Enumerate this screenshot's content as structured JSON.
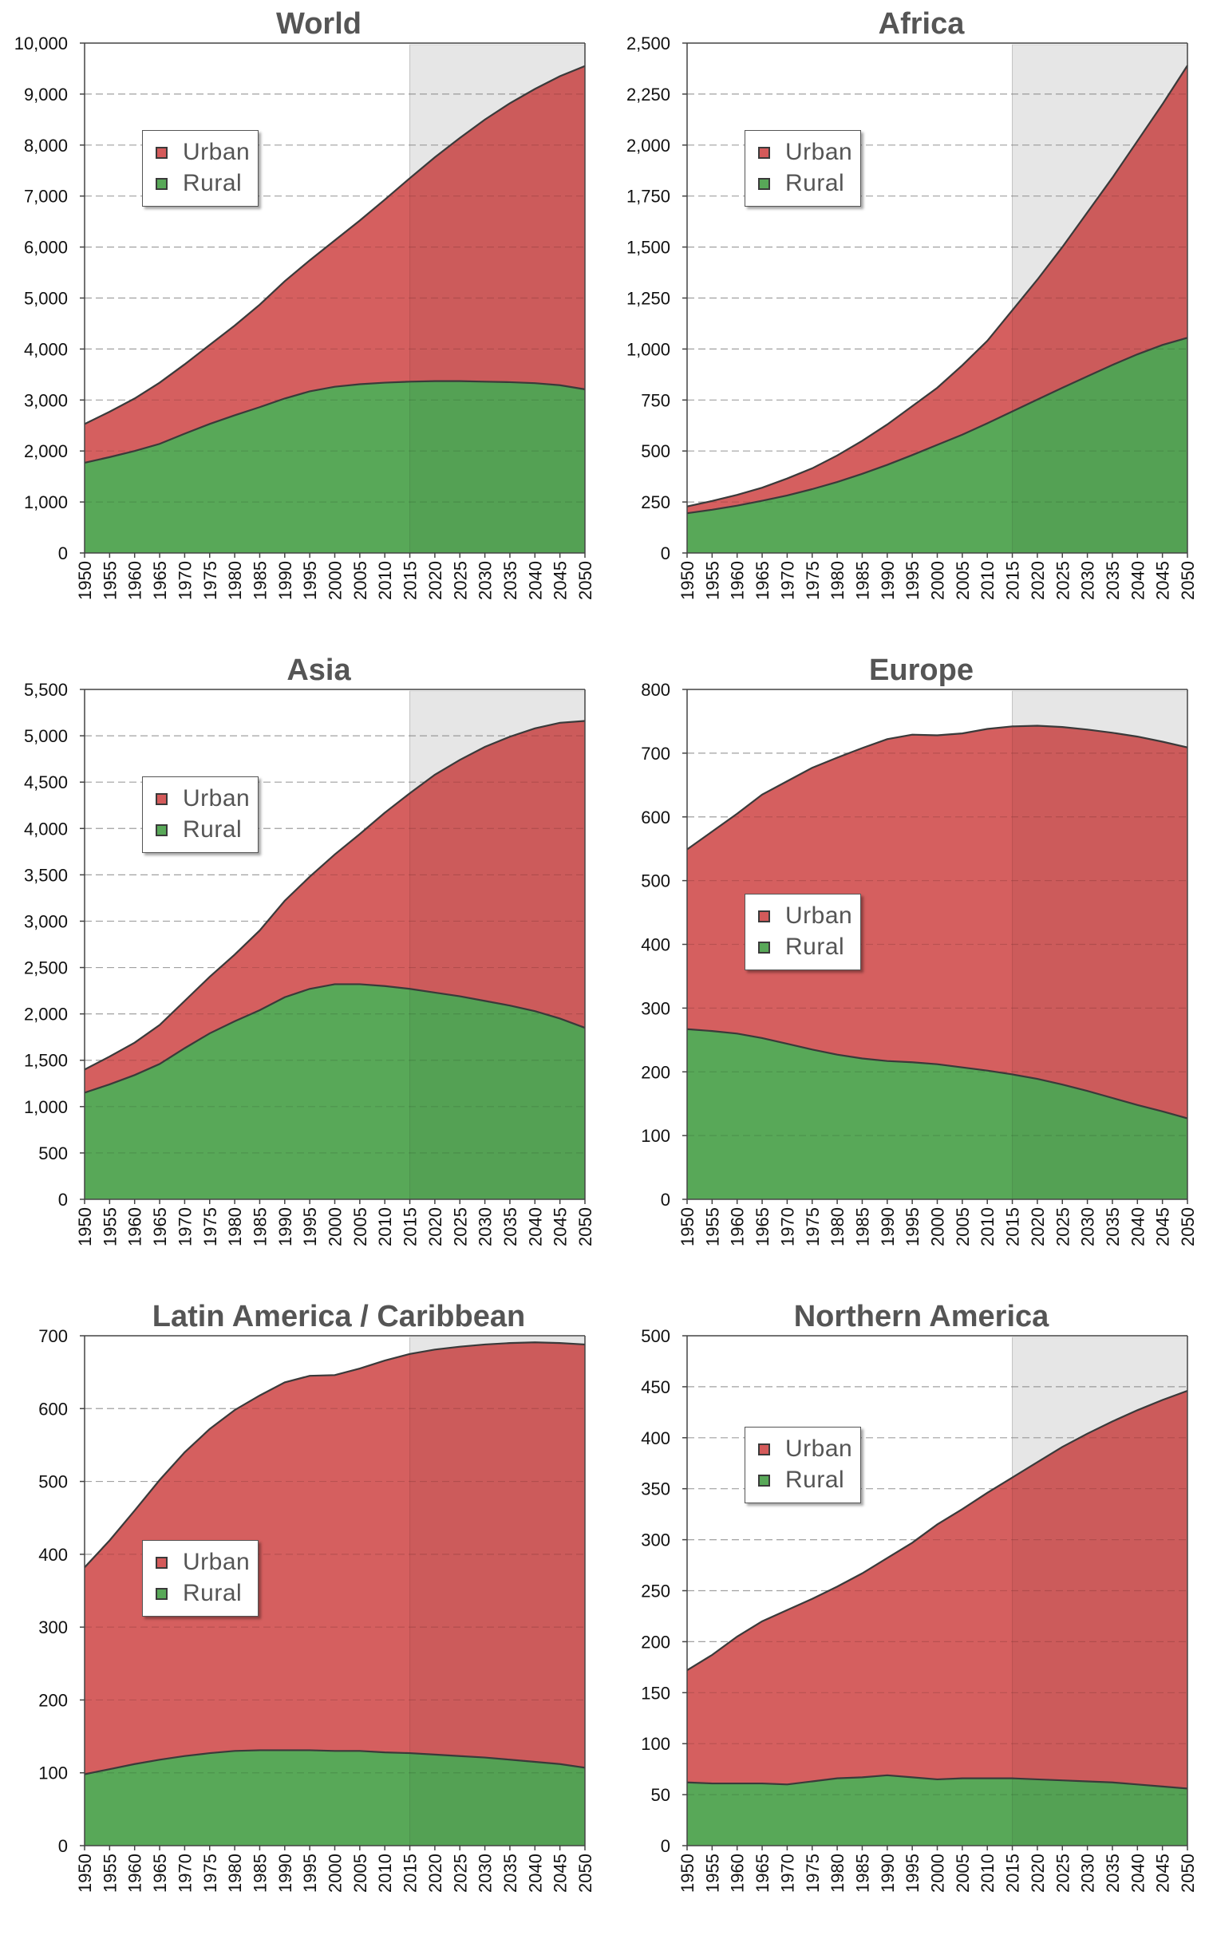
{
  "figure": {
    "colors": {
      "urban": "#d45a5a",
      "rural": "#58a858",
      "outline": "#3a3a3a",
      "projection_shade": "#f0f0f0",
      "grid": "#b8b8b8",
      "title_text": "#555555",
      "tick_text": "#111111"
    },
    "legend_labels": {
      "urban": "Urban",
      "rural": "Rural"
    },
    "projection_start": 2015
  },
  "chart_data": [
    {
      "type": "area",
      "stacked": true,
      "title": "World",
      "xlabel": "",
      "ylabel": "",
      "x": [
        1950,
        1955,
        1960,
        1965,
        1970,
        1975,
        1980,
        1985,
        1990,
        1995,
        2000,
        2005,
        2010,
        2015,
        2020,
        2025,
        2030,
        2035,
        2040,
        2045,
        2050
      ],
      "ylim": [
        0,
        10000
      ],
      "yticks": [
        0,
        1000,
        2000,
        3000,
        4000,
        5000,
        6000,
        7000,
        8000,
        9000,
        10000
      ],
      "ytick_labels": [
        "0",
        "1,000",
        "2,000",
        "3,000",
        "4,000",
        "5,000",
        "6,000",
        "7,000",
        "8,000",
        "9,000",
        "10,000"
      ],
      "grid": true,
      "legend": {
        "entries": [
          "Urban",
          "Rural"
        ],
        "placement": "upper-left"
      },
      "projection_shaded_from": 2015,
      "series": [
        {
          "name": "Rural",
          "values": [
            1770,
            1880,
            2000,
            2140,
            2340,
            2530,
            2700,
            2860,
            3030,
            3170,
            3260,
            3310,
            3340,
            3360,
            3370,
            3370,
            3360,
            3350,
            3330,
            3290,
            3210
          ]
        },
        {
          "name": "Urban",
          "values": [
            760,
            890,
            1030,
            1200,
            1360,
            1550,
            1760,
            2010,
            2300,
            2570,
            2870,
            3210,
            3590,
            3990,
            4390,
            4770,
            5140,
            5470,
            5770,
            6060,
            6340
          ]
        }
      ]
    },
    {
      "type": "area",
      "stacked": true,
      "title": "Africa",
      "xlabel": "",
      "ylabel": "",
      "x": [
        1950,
        1955,
        1960,
        1965,
        1970,
        1975,
        1980,
        1985,
        1990,
        1995,
        2000,
        2005,
        2010,
        2015,
        2020,
        2025,
        2030,
        2035,
        2040,
        2045,
        2050
      ],
      "ylim": [
        0,
        2500
      ],
      "yticks": [
        0,
        250,
        500,
        750,
        1000,
        1250,
        1500,
        1750,
        2000,
        2250,
        2500
      ],
      "ytick_labels": [
        "0",
        "250",
        "500",
        "750",
        "1,000",
        "1,250",
        "1,500",
        "1,750",
        "2,000",
        "2,250",
        "2,500"
      ],
      "grid": true,
      "legend": {
        "entries": [
          "Urban",
          "Rural"
        ],
        "placement": "upper-left"
      },
      "projection_shaded_from": 2015,
      "series": [
        {
          "name": "Rural",
          "values": [
            195,
            212,
            232,
            256,
            282,
            313,
            348,
            388,
            432,
            480,
            530,
            580,
            636,
            694,
            752,
            810,
            866,
            922,
            974,
            1020,
            1055
          ]
        },
        {
          "name": "Urban",
          "values": [
            33,
            43,
            53,
            64,
            83,
            102,
            130,
            162,
            198,
            240,
            280,
            340,
            404,
            496,
            588,
            690,
            804,
            918,
            1046,
            1180,
            1335
          ]
        }
      ]
    },
    {
      "type": "area",
      "stacked": true,
      "title": "Asia",
      "xlabel": "",
      "ylabel": "",
      "x": [
        1950,
        1955,
        1960,
        1965,
        1970,
        1975,
        1980,
        1985,
        1990,
        1995,
        2000,
        2005,
        2010,
        2015,
        2020,
        2025,
        2030,
        2035,
        2040,
        2045,
        2050
      ],
      "ylim": [
        0,
        5500
      ],
      "yticks": [
        0,
        500,
        1000,
        1500,
        2000,
        2500,
        3000,
        3500,
        4000,
        4500,
        5000,
        5500
      ],
      "ytick_labels": [
        "0",
        "500",
        "1,000",
        "1,500",
        "2,000",
        "2,500",
        "3,000",
        "3,500",
        "4,000",
        "4,500",
        "5,000",
        "5,500"
      ],
      "grid": true,
      "legend": {
        "entries": [
          "Urban",
          "Rural"
        ],
        "placement": "upper-left"
      },
      "projection_shaded_from": 2015,
      "series": [
        {
          "name": "Rural",
          "values": [
            1150,
            1240,
            1340,
            1460,
            1630,
            1790,
            1920,
            2040,
            2180,
            2270,
            2320,
            2320,
            2300,
            2270,
            2230,
            2190,
            2140,
            2090,
            2030,
            1950,
            1850
          ]
        },
        {
          "name": "Urban",
          "values": [
            250,
            300,
            350,
            420,
            510,
            610,
            720,
            860,
            1040,
            1210,
            1400,
            1620,
            1870,
            2110,
            2350,
            2550,
            2740,
            2900,
            3050,
            3190,
            3310
          ]
        }
      ]
    },
    {
      "type": "area",
      "stacked": true,
      "title": "Europe",
      "xlabel": "",
      "ylabel": "",
      "x": [
        1950,
        1955,
        1960,
        1965,
        1970,
        1975,
        1980,
        1985,
        1990,
        1995,
        2000,
        2005,
        2010,
        2015,
        2020,
        2025,
        2030,
        2035,
        2040,
        2045,
        2050
      ],
      "ylim": [
        0,
        800
      ],
      "yticks": [
        0,
        100,
        200,
        300,
        400,
        500,
        600,
        700,
        800
      ],
      "ytick_labels": [
        "0",
        "100",
        "200",
        "300",
        "400",
        "500",
        "600",
        "700",
        "800"
      ],
      "grid": true,
      "legend": {
        "entries": [
          "Urban",
          "Rural"
        ],
        "placement": "center-left"
      },
      "projection_shaded_from": 2015,
      "series": [
        {
          "name": "Rural",
          "values": [
            267,
            264,
            260,
            253,
            244,
            235,
            227,
            221,
            217,
            215,
            212,
            207,
            202,
            196,
            189,
            180,
            170,
            159,
            148,
            138,
            127
          ]
        },
        {
          "name": "Urban",
          "values": [
            282,
            313,
            345,
            382,
            412,
            442,
            466,
            487,
            505,
            514,
            516,
            524,
            536,
            546,
            554,
            561,
            567,
            573,
            578,
            580,
            582
          ]
        }
      ]
    },
    {
      "type": "area",
      "stacked": true,
      "title": "Latin America / Caribbean",
      "xlabel": "",
      "ylabel": "",
      "x": [
        1950,
        1955,
        1960,
        1965,
        1970,
        1975,
        1980,
        1985,
        1990,
        1995,
        2000,
        2005,
        2010,
        2015,
        2020,
        2025,
        2030,
        2035,
        2040,
        2045,
        2050
      ],
      "ylim": [
        0,
        700
      ],
      "yticks": [
        0,
        100,
        200,
        300,
        400,
        500,
        600,
        700
      ],
      "ytick_labels": [
        "0",
        "100",
        "200",
        "300",
        "400",
        "500",
        "600",
        "700"
      ],
      "grid": true,
      "legend": {
        "entries": [
          "Urban",
          "Rural"
        ],
        "placement": "center-left"
      },
      "projection_shaded_from": 2015,
      "series": [
        {
          "name": "Rural",
          "values": [
            98,
            105,
            112,
            118,
            123,
            127,
            130,
            131,
            131,
            131,
            130,
            130,
            128,
            127,
            125,
            123,
            121,
            118,
            115,
            112,
            107
          ]
        },
        {
          "name": "Urban",
          "values": [
            284,
            314,
            348,
            384,
            417,
            445,
            468,
            487,
            505,
            514,
            516,
            525,
            538,
            548,
            556,
            562,
            567,
            572,
            576,
            578,
            581
          ]
        }
      ]
    },
    {
      "type": "area",
      "stacked": true,
      "title": "Northern America",
      "xlabel": "",
      "ylabel": "",
      "x": [
        1950,
        1955,
        1960,
        1965,
        1970,
        1975,
        1980,
        1985,
        1990,
        1995,
        2000,
        2005,
        2010,
        2015,
        2020,
        2025,
        2030,
        2035,
        2040,
        2045,
        2050
      ],
      "ylim": [
        0,
        500
      ],
      "yticks": [
        0,
        50,
        100,
        150,
        200,
        250,
        300,
        350,
        400,
        450,
        500
      ],
      "ytick_labels": [
        "0",
        "50",
        "100",
        "150",
        "200",
        "250",
        "300",
        "350",
        "400",
        "450",
        "500"
      ],
      "grid": true,
      "legend": {
        "entries": [
          "Urban",
          "Rural"
        ],
        "placement": "upper-left"
      },
      "projection_shaded_from": 2015,
      "series": [
        {
          "name": "Rural",
          "values": [
            62,
            61,
            61,
            61,
            60,
            63,
            66,
            67,
            69,
            67,
            65,
            66,
            66,
            66,
            65,
            64,
            63,
            62,
            60,
            58,
            56
          ]
        },
        {
          "name": "Urban",
          "values": [
            110,
            126,
            144,
            159,
            171,
            179,
            188,
            200,
            213,
            230,
            250,
            264,
            280,
            295,
            311,
            327,
            341,
            354,
            367,
            379,
            390
          ]
        }
      ]
    }
  ]
}
